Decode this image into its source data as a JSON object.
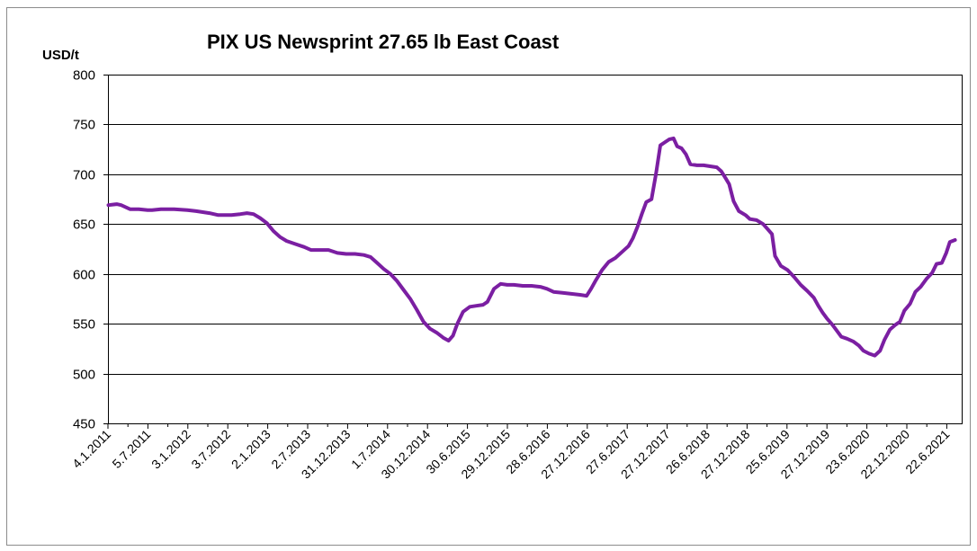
{
  "chart_data": {
    "type": "line",
    "title": "PIX US Newsprint 27.65 lb East Coast",
    "ylabel": "USD/t",
    "xlabel": "",
    "ylim": [
      450,
      800
    ],
    "yticks": [
      450,
      500,
      550,
      600,
      650,
      700,
      750,
      800
    ],
    "grid": "horizontal",
    "legend": "none",
    "line_color": "#7B1FA2",
    "x_tick_labels": [
      "4.1.2011",
      "5.7.2011",
      "3.1.2012",
      "3.7.2012",
      "2.1.2013",
      "2.7.2013",
      "31.12.2013",
      "1.7.2014",
      "30.12.2014",
      "30.6.2015",
      "29.12.2015",
      "28.6.2016",
      "27.12.2016",
      "27.6.2017",
      "27.12.2017",
      "26.6.2018",
      "27.12.2018",
      "25.6.2019",
      "27.12.2019",
      "23.6.2020",
      "22.12.2020",
      "22.6.2021"
    ],
    "series": [
      {
        "values": [
          [
            2011.01,
            669
          ],
          [
            2011.2,
            670
          ],
          [
            2011.3,
            669
          ],
          [
            2011.4,
            667
          ],
          [
            2011.5,
            665
          ],
          [
            2011.7,
            665
          ],
          [
            2011.9,
            664
          ],
          [
            2012.0,
            664
          ],
          [
            2012.2,
            665
          ],
          [
            2012.5,
            665
          ],
          [
            2012.8,
            664
          ],
          [
            2013.0,
            663
          ],
          [
            2013.3,
            661
          ],
          [
            2013.5,
            659
          ],
          [
            2013.8,
            659
          ],
          [
            2014.0,
            660
          ],
          [
            2014.15,
            661
          ],
          [
            2014.3,
            660
          ],
          [
            2014.45,
            656
          ],
          [
            2014.6,
            651
          ],
          [
            2014.75,
            643
          ],
          [
            2014.9,
            637
          ],
          [
            2015.05,
            633
          ],
          [
            2015.25,
            630
          ],
          [
            2015.45,
            627
          ],
          [
            2015.6,
            624
          ],
          [
            2015.8,
            624
          ],
          [
            2016.0,
            624
          ],
          [
            2016.2,
            621
          ],
          [
            2016.4,
            620
          ],
          [
            2016.6,
            620
          ],
          [
            2016.8,
            619
          ],
          [
            2016.95,
            617
          ],
          [
            2017.1,
            611
          ],
          [
            2017.25,
            605
          ],
          [
            2017.4,
            600
          ],
          [
            2017.55,
            593
          ],
          [
            2017.7,
            584
          ],
          [
            2017.85,
            575
          ],
          [
            2018.0,
            564
          ],
          [
            2018.15,
            552
          ],
          [
            2018.3,
            545
          ],
          [
            2018.45,
            541
          ],
          [
            2018.6,
            536
          ],
          [
            2018.72,
            533
          ],
          [
            2018.82,
            538
          ],
          [
            2018.92,
            550
          ],
          [
            2019.05,
            562
          ],
          [
            2019.2,
            567
          ],
          [
            2019.35,
            568
          ],
          [
            2019.5,
            569
          ],
          [
            2019.6,
            572
          ],
          [
            2019.75,
            585
          ],
          [
            2019.9,
            590
          ],
          [
            2020.05,
            589
          ],
          [
            2020.2,
            589
          ],
          [
            2020.4,
            588
          ],
          [
            2020.6,
            588
          ],
          [
            2020.8,
            587
          ],
          [
            2020.95,
            585
          ],
          [
            2021.1,
            582
          ],
          [
            2021.3,
            581
          ],
          [
            2021.5,
            580
          ],
          [
            2021.7,
            579
          ],
          [
            2021.85,
            578
          ],
          [
            2021.95,
            585
          ],
          [
            2022.05,
            593
          ],
          [
            2022.2,
            604
          ],
          [
            2022.35,
            612
          ],
          [
            2022.5,
            616
          ],
          [
            2022.65,
            622
          ],
          [
            2022.8,
            628
          ],
          [
            2022.9,
            636
          ],
          [
            2023.0,
            647
          ],
          [
            2023.1,
            660
          ],
          [
            2023.2,
            672
          ],
          [
            2023.32,
            675
          ],
          [
            2023.42,
            700
          ],
          [
            2023.52,
            729
          ],
          [
            2023.62,
            732
          ],
          [
            2023.72,
            735
          ],
          [
            2023.82,
            736
          ],
          [
            2023.9,
            728
          ],
          [
            2024.0,
            726
          ],
          [
            2024.1,
            720
          ],
          [
            2024.2,
            710
          ],
          [
            2024.35,
            709
          ],
          [
            2024.5,
            709
          ],
          [
            2024.65,
            708
          ],
          [
            2024.8,
            707
          ],
          [
            2024.9,
            703
          ],
          [
            2025.0,
            696
          ],
          [
            2025.08,
            690
          ],
          [
            2025.18,
            673
          ],
          [
            2025.3,
            663
          ],
          [
            2025.45,
            659
          ],
          [
            2025.55,
            655
          ],
          [
            2025.7,
            654
          ],
          [
            2025.85,
            650
          ],
          [
            2025.95,
            645
          ],
          [
            2026.05,
            640
          ],
          [
            2026.12,
            618
          ],
          [
            2026.25,
            608
          ],
          [
            2026.4,
            604
          ],
          [
            2026.55,
            597
          ],
          [
            2026.7,
            589
          ],
          [
            2026.85,
            583
          ],
          [
            2027.0,
            576
          ],
          [
            2027.1,
            568
          ],
          [
            2027.2,
            561
          ],
          [
            2027.3,
            555
          ],
          [
            2027.42,
            549
          ],
          [
            2027.52,
            543
          ],
          [
            2027.62,
            537
          ],
          [
            2027.75,
            535
          ],
          [
            2027.9,
            532
          ],
          [
            2028.02,
            528
          ],
          [
            2028.12,
            523
          ],
          [
            2028.25,
            520
          ],
          [
            2028.38,
            518
          ],
          [
            2028.5,
            523
          ],
          [
            2028.6,
            534
          ],
          [
            2028.72,
            544
          ],
          [
            2028.85,
            549
          ],
          [
            2028.95,
            552
          ],
          [
            2029.05,
            563
          ],
          [
            2029.18,
            570
          ],
          [
            2029.3,
            582
          ],
          [
            2029.42,
            587
          ],
          [
            2029.55,
            595
          ],
          [
            2029.68,
            601
          ],
          [
            2029.78,
            610
          ],
          [
            2029.9,
            611
          ],
          [
            2030.0,
            621
          ],
          [
            2030.08,
            632
          ],
          [
            2030.2,
            634
          ]
        ]
      }
    ]
  }
}
